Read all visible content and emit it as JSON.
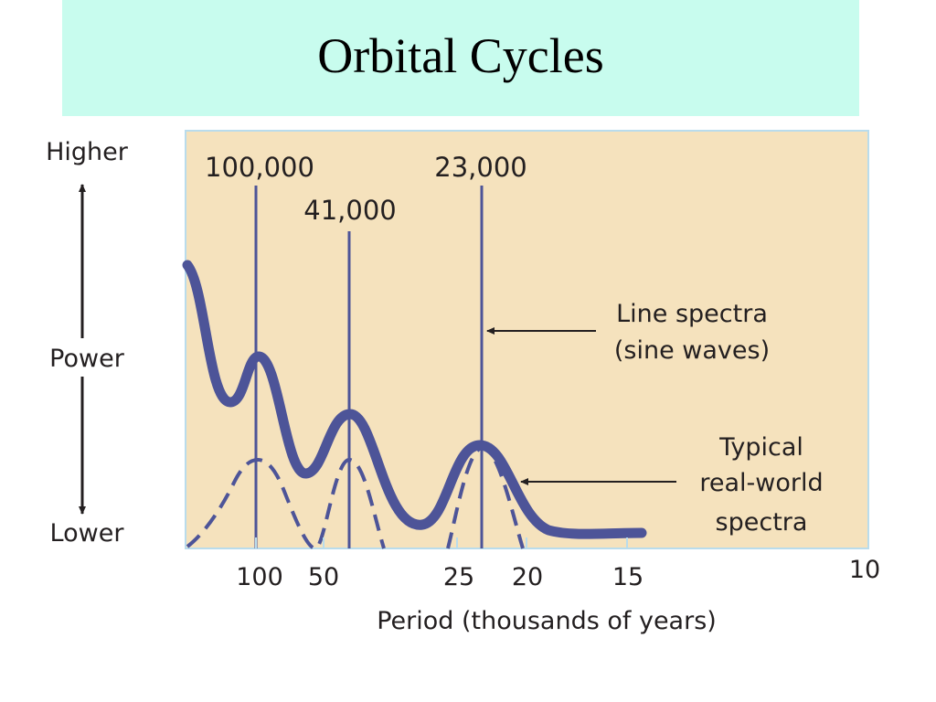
{
  "slide": {
    "title": "Orbital Cycles"
  },
  "chart_data": {
    "type": "line",
    "title": "",
    "xlabel": "Period (thousands of years)",
    "ylabel": "Power",
    "y_axis_ends": {
      "top": "Higher",
      "bottom": "Lower"
    },
    "x_ticks": [
      "100",
      "50",
      "25",
      "20",
      "15",
      "10"
    ],
    "line_spectra": [
      {
        "label": "100,000",
        "period_kyr": 100
      },
      {
        "label": "41,000",
        "period_kyr": 41
      },
      {
        "label": "23,000",
        "period_kyr": 23
      }
    ],
    "series": [
      {
        "name": "Typical real-world spectra",
        "style": "solid",
        "color": "#4d5498",
        "peaks_period_kyr": [
          100,
          41,
          23
        ]
      },
      {
        "style": "dashed",
        "color": "#4d5498",
        "peaks_period_kyr": [
          100,
          41,
          23
        ]
      }
    ],
    "annotations": [
      {
        "text": [
          "Line spectra",
          "(sine waves)"
        ]
      },
      {
        "text": [
          "Typical",
          "real-world",
          "spectra"
        ]
      }
    ],
    "plot_background": "#f5e2bd",
    "plot_border": "#b9dcec"
  }
}
